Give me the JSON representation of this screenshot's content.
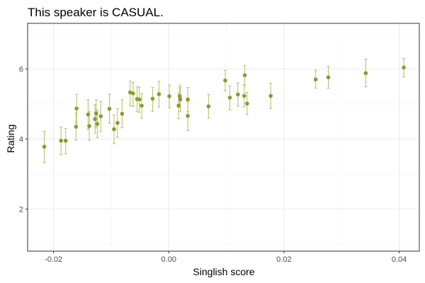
{
  "chart_data": {
    "type": "scatter",
    "title": "This speaker is CASUAL.",
    "xlabel": "Singlish score",
    "ylabel": "Rating",
    "xlim": [
      -0.0245,
      0.0435
    ],
    "ylim": [
      0.8,
      7.3
    ],
    "x_ticks": [
      -0.02,
      0.0,
      0.02,
      0.04
    ],
    "x_tick_labels": [
      "-0.02",
      "0.00",
      "0.02",
      "0.04"
    ],
    "y_ticks": [
      2,
      4,
      6
    ],
    "y_tick_labels": [
      "2",
      "4",
      "6"
    ],
    "grid": true,
    "legend": "none",
    "colors": {
      "point": "#8c9a2c",
      "error_bar": "#b5be6a",
      "panel_border": "#333333",
      "background": "#ffffff"
    },
    "series": [
      {
        "error_bars": true,
        "points": [
          {
            "x": -0.0216,
            "y": 3.78,
            "lo": 3.32,
            "hi": 4.22
          },
          {
            "x": -0.0187,
            "y": 3.95,
            "lo": 3.56,
            "hi": 4.34
          },
          {
            "x": -0.0179,
            "y": 3.95,
            "lo": 3.58,
            "hi": 4.3
          },
          {
            "x": -0.0161,
            "y": 4.35,
            "lo": 3.97,
            "hi": 4.74
          },
          {
            "x": -0.016,
            "y": 4.87,
            "lo": 4.45,
            "hi": 5.27
          },
          {
            "x": -0.014,
            "y": 4.7,
            "lo": 4.28,
            "hi": 5.12
          },
          {
            "x": -0.0138,
            "y": 4.37,
            "lo": 3.97,
            "hi": 4.78
          },
          {
            "x": -0.0128,
            "y": 4.57,
            "lo": 4.17,
            "hi": 4.98
          },
          {
            "x": -0.0126,
            "y": 4.73,
            "lo": 4.34,
            "hi": 5.12
          },
          {
            "x": -0.0124,
            "y": 4.43,
            "lo": 4.04,
            "hi": 4.82
          },
          {
            "x": -0.0118,
            "y": 4.65,
            "lo": 4.21,
            "hi": 5.07
          },
          {
            "x": -0.0103,
            "y": 4.86,
            "lo": 4.45,
            "hi": 5.28
          },
          {
            "x": -0.0095,
            "y": 4.28,
            "lo": 3.87,
            "hi": 4.68
          },
          {
            "x": -0.0089,
            "y": 4.46,
            "lo": 4.05,
            "hi": 4.87
          },
          {
            "x": -0.0081,
            "y": 4.72,
            "lo": 4.32,
            "hi": 5.12
          },
          {
            "x": -0.0067,
            "y": 5.33,
            "lo": 4.95,
            "hi": 5.65
          },
          {
            "x": -0.0062,
            "y": 5.3,
            "lo": 4.93,
            "hi": 5.62
          },
          {
            "x": -0.0055,
            "y": 5.14,
            "lo": 4.78,
            "hi": 5.5
          },
          {
            "x": -0.0051,
            "y": 5.13,
            "lo": 4.76,
            "hi": 5.48
          },
          {
            "x": -0.0047,
            "y": 4.95,
            "lo": 4.59,
            "hi": 5.3
          },
          {
            "x": -0.0028,
            "y": 5.15,
            "lo": 4.79,
            "hi": 5.47
          },
          {
            "x": -0.0017,
            "y": 5.28,
            "lo": 4.91,
            "hi": 5.65
          },
          {
            "x": 0.0001,
            "y": 5.22,
            "lo": 4.89,
            "hi": 5.54
          },
          {
            "x": 0.0017,
            "y": 4.95,
            "lo": 4.58,
            "hi": 5.3
          },
          {
            "x": 0.0019,
            "y": 5.22,
            "lo": 4.92,
            "hi": 5.53
          },
          {
            "x": 0.002,
            "y": 5.13,
            "lo": 4.78,
            "hi": 5.47
          },
          {
            "x": 0.0033,
            "y": 5.13,
            "lo": 4.78,
            "hi": 5.47
          },
          {
            "x": 0.0033,
            "y": 4.66,
            "lo": 4.24,
            "hi": 5.07
          },
          {
            "x": 0.0069,
            "y": 4.93,
            "lo": 4.59,
            "hi": 5.27
          },
          {
            "x": 0.0098,
            "y": 5.67,
            "lo": 5.37,
            "hi": 5.96
          },
          {
            "x": 0.0106,
            "y": 5.18,
            "lo": 4.83,
            "hi": 5.52
          },
          {
            "x": 0.012,
            "y": 5.27,
            "lo": 4.94,
            "hi": 5.6
          },
          {
            "x": 0.0131,
            "y": 5.23,
            "lo": 4.92,
            "hi": 5.55
          },
          {
            "x": 0.0132,
            "y": 5.82,
            "lo": 5.52,
            "hi": 6.1
          },
          {
            "x": 0.0136,
            "y": 5.01,
            "lo": 4.7,
            "hi": 5.33
          },
          {
            "x": 0.0177,
            "y": 5.23,
            "lo": 4.87,
            "hi": 5.59
          },
          {
            "x": 0.0255,
            "y": 5.7,
            "lo": 5.45,
            "hi": 5.96
          },
          {
            "x": 0.0277,
            "y": 5.76,
            "lo": 5.45,
            "hi": 6.07
          },
          {
            "x": 0.0342,
            "y": 5.88,
            "lo": 5.49,
            "hi": 6.28
          },
          {
            "x": 0.0408,
            "y": 6.04,
            "lo": 5.77,
            "hi": 6.3
          }
        ]
      }
    ]
  }
}
